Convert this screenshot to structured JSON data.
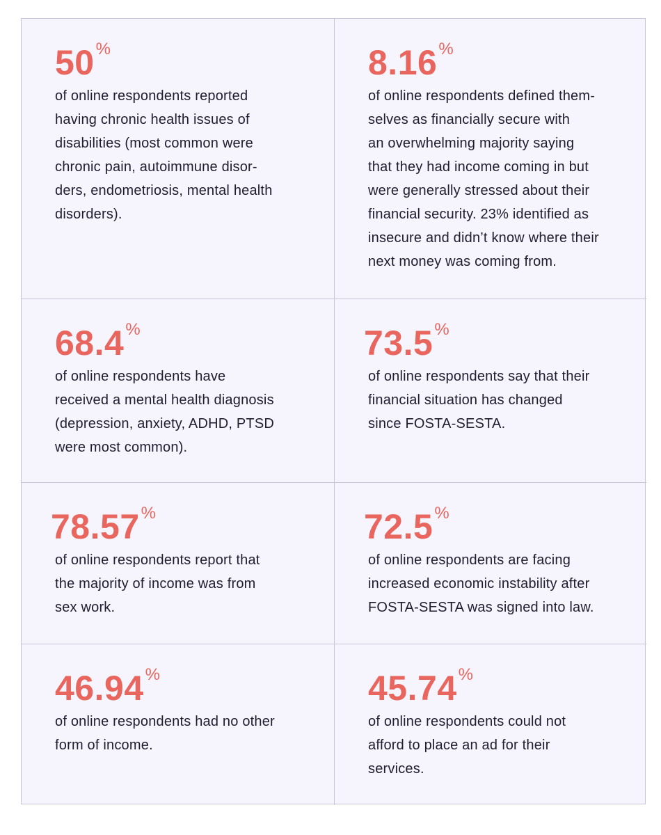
{
  "stats": [
    {
      "value": "50",
      "unit": "%",
      "description": "of online respondents reported\nhaving chronic health issues of\ndisabilities (most common were\nchronic pain, autoimmune disor-\nders, endometriosis, mental health\ndisorders)."
    },
    {
      "value": "8.16",
      "unit": "%",
      "description": "of online respondents defined them-\nselves as financially secure with\nan overwhelming majority saying\nthat they had income coming in but\nwere generally stressed about their\nfinancial security. 23% identified as\ninsecure and didn’t know where their\nnext money was coming from."
    },
    {
      "value": "68.4",
      "unit": "%",
      "description": "of online respondents have\nreceived a mental health diagnosis\n(depression, anxiety, ADHD, PTSD\nwere most common)."
    },
    {
      "value": "73.5",
      "unit": "%",
      "description": "of online respondents say that their\nfinancial situation has changed\nsince FOSTA-SESTA."
    },
    {
      "value": "78.57",
      "unit": "%",
      "description": "of online respondents report that\nthe majority of income was from\nsex work."
    },
    {
      "value": "72.5",
      "unit": "%",
      "description": "of online respondents are facing\nincreased economic instability after\nFOSTA-SESTA was signed into law."
    },
    {
      "value": "46.94",
      "unit": "%",
      "description": "of online respondents had no other\nform of income."
    },
    {
      "value": "45.74",
      "unit": "%",
      "description": "of online respondents could not\nafford to place an ad for their\nservices."
    }
  ],
  "colors": {
    "accent": "#e8665e",
    "text": "#1f1d2e",
    "background": "#f6f4fd",
    "border": "#c7c3d9"
  }
}
